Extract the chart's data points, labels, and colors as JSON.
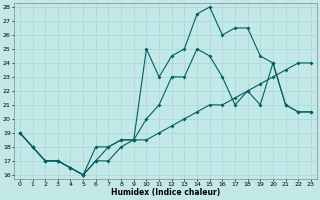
{
  "xlabel": "Humidex (Indice chaleur)",
  "bg_color": "#c2e8e8",
  "grid_color": "#b0d8d8",
  "line_color": "#006060",
  "xlim_min": -0.5,
  "xlim_max": 23.5,
  "ylim_min": 15.7,
  "ylim_max": 28.3,
  "xticks": [
    0,
    1,
    2,
    3,
    4,
    5,
    6,
    7,
    8,
    9,
    10,
    11,
    12,
    13,
    14,
    15,
    16,
    17,
    18,
    19,
    20,
    21,
    22,
    23
  ],
  "yticks": [
    16,
    17,
    18,
    19,
    20,
    21,
    22,
    23,
    24,
    25,
    26,
    27,
    28
  ],
  "line1_x": [
    0,
    1,
    2,
    3,
    4,
    5,
    6,
    7,
    8,
    9,
    10,
    11,
    12,
    13,
    14,
    15,
    16,
    17,
    18,
    19,
    20,
    21,
    22,
    23
  ],
  "line1_y": [
    19,
    18,
    17,
    17,
    16.5,
    16,
    17,
    17,
    18,
    18.5,
    18.5,
    19,
    19.5,
    20,
    20.5,
    21,
    21,
    21.5,
    22,
    22.5,
    23,
    23.5,
    24,
    24
  ],
  "line2_x": [
    0,
    1,
    2,
    3,
    4,
    5,
    6,
    7,
    8,
    9,
    10,
    11,
    12,
    13,
    14,
    15,
    16,
    17,
    18,
    19,
    20,
    21,
    22,
    23
  ],
  "line2_y": [
    19,
    18,
    17,
    17,
    16.5,
    16,
    17,
    18,
    18.5,
    18.5,
    20,
    21,
    23,
    23,
    25,
    24.5,
    23,
    21,
    22,
    21,
    24,
    21,
    20.5,
    20.5
  ],
  "line3_x": [
    0,
    1,
    2,
    3,
    4,
    5,
    6,
    7,
    8,
    9,
    10,
    11,
    12,
    13,
    14,
    15,
    16,
    17,
    18,
    19,
    20,
    21,
    22,
    23
  ],
  "line3_y": [
    19,
    18,
    17,
    17,
    16.5,
    16,
    18,
    18,
    18.5,
    18.5,
    25,
    23,
    24.5,
    25,
    27.5,
    28,
    26,
    26.5,
    26.5,
    24.5,
    24,
    21,
    20.5,
    20.5
  ]
}
